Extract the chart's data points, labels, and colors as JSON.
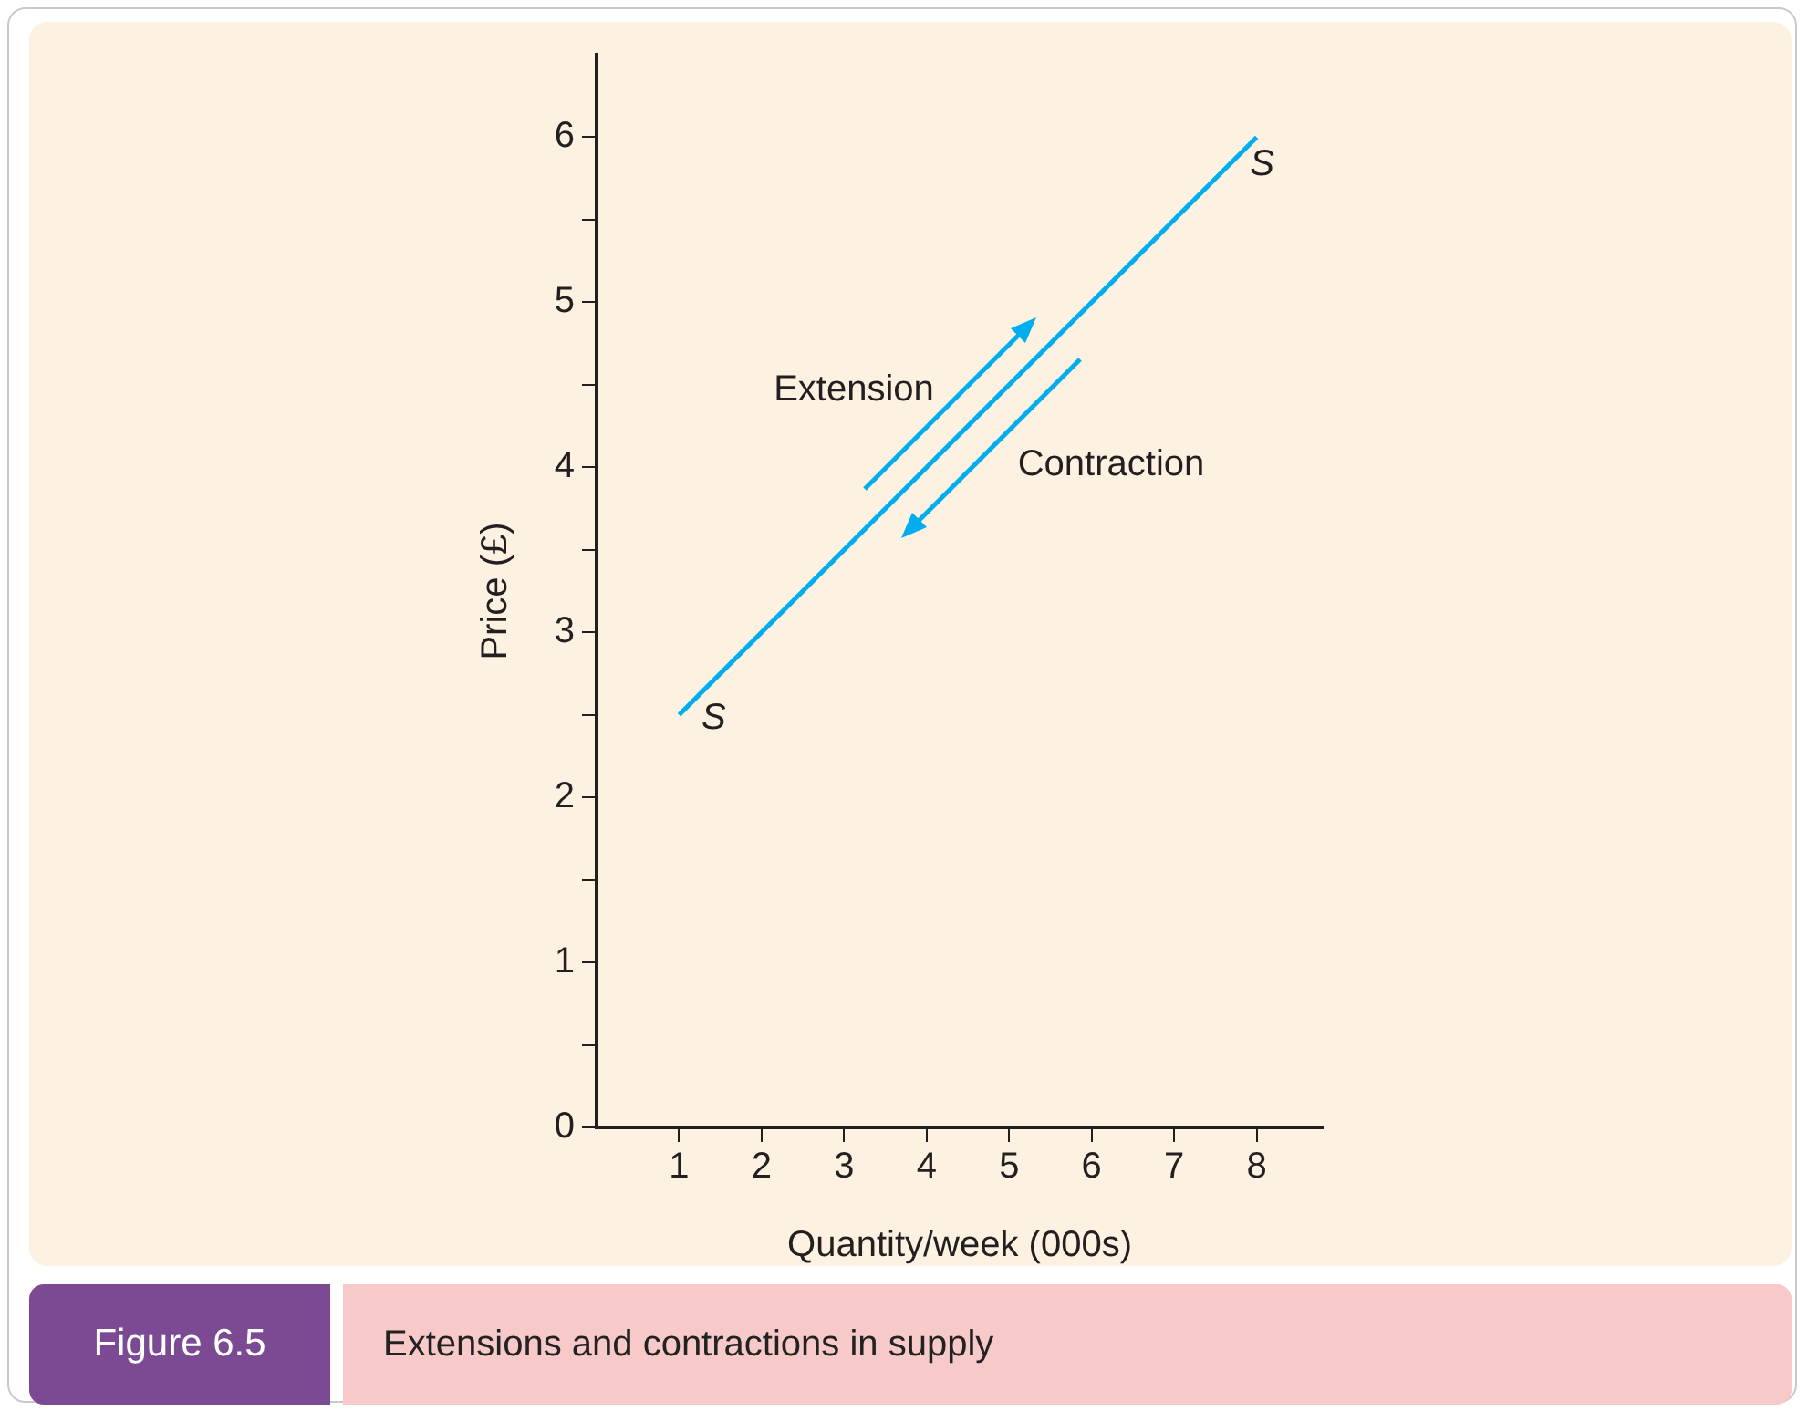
{
  "chart_data": {
    "type": "line",
    "title": "Extensions and contractions in supply",
    "xlabel": "Quantity/week (000s)",
    "ylabel": "Price (£)",
    "series": [
      {
        "name": "S",
        "color": "#00aeef",
        "x": [
          1,
          8
        ],
        "values": [
          2.5,
          6
        ]
      }
    ],
    "xlim": [
      0,
      8.8
    ],
    "xticks": [
      1,
      2,
      3,
      4,
      5,
      6,
      7,
      8
    ],
    "ylim": [
      0,
      6.5
    ],
    "yticks": [
      0,
      {
        "value": 0.5,
        "label": null
      },
      1,
      {
        "value": 1.5,
        "label": null
      },
      2,
      {
        "value": 2.5,
        "label": null
      },
      3,
      {
        "value": 3.5,
        "label": null
      },
      4,
      {
        "value": 4.5,
        "label": null
      },
      5,
      {
        "value": 5.5,
        "label": null
      },
      6
    ],
    "marker": "none",
    "line_style": "solid",
    "grid": false,
    "legend": false,
    "annotations": [
      "Figure 6.5",
      "Extension",
      "Contraction"
    ]
  }
}
